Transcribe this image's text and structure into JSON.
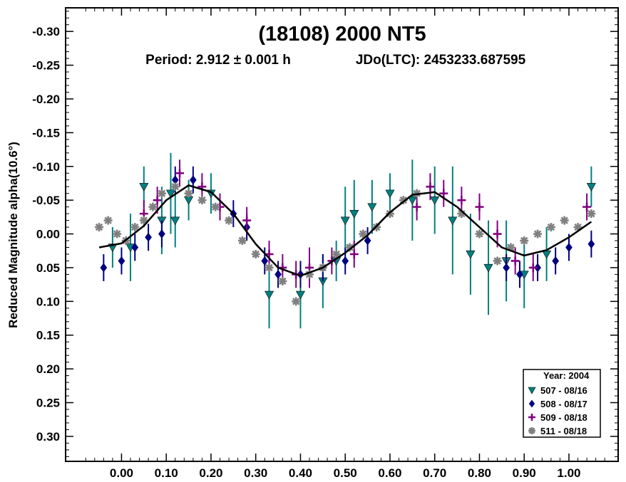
{
  "chart_data": {
    "type": "scatter",
    "title": "(18108) 2000 NT5",
    "subtitle_period": "Period: 2.912 ± 0.001 h",
    "subtitle_jdo": "JDo(LTC): 2453233.687595",
    "xlabel": "",
    "ylabel": "Reduced Magnitude alpha(10.6°)",
    "x_ticks": [
      0.0,
      0.1,
      0.2,
      0.3,
      0.4,
      0.5,
      0.6,
      0.7,
      0.8,
      0.9,
      1.0
    ],
    "x_tick_labels": [
      "0.00",
      "0.10",
      "0.20",
      "0.30",
      "0.40",
      "0.50",
      "0.60",
      "0.70",
      "0.80",
      "0.90",
      "1.00"
    ],
    "xlim": [
      -0.125,
      1.11
    ],
    "y_ticks": [
      -0.3,
      -0.25,
      -0.2,
      -0.15,
      -0.1,
      -0.05,
      0.0,
      0.05,
      0.1,
      0.15,
      0.2,
      0.25,
      0.3
    ],
    "y_tick_labels": [
      "-0.30",
      "-0.25",
      "-0.20",
      "-0.15",
      "-0.10",
      "-0.05",
      "0.00",
      "0.05",
      "0.10",
      "0.15",
      "0.20",
      "0.25",
      "0.30"
    ],
    "ylim": [
      -0.335,
      0.337
    ],
    "y_inverted": true,
    "grid": false,
    "legend_position": "bottom-right",
    "legend_title": "Year: 2004",
    "fit_curve": {
      "color": "#000000",
      "points": [
        [
          -0.05,
          0.02
        ],
        [
          0.0,
          0.014
        ],
        [
          0.05,
          -0.012
        ],
        [
          0.1,
          -0.05
        ],
        [
          0.15,
          -0.072
        ],
        [
          0.2,
          -0.062
        ],
        [
          0.25,
          -0.03
        ],
        [
          0.3,
          0.015
        ],
        [
          0.35,
          0.05
        ],
        [
          0.4,
          0.062
        ],
        [
          0.45,
          0.05
        ],
        [
          0.5,
          0.028
        ],
        [
          0.55,
          0.002
        ],
        [
          0.6,
          -0.032
        ],
        [
          0.65,
          -0.058
        ],
        [
          0.7,
          -0.062
        ],
        [
          0.75,
          -0.04
        ],
        [
          0.8,
          -0.01
        ],
        [
          0.85,
          0.02
        ],
        [
          0.9,
          0.032
        ],
        [
          0.95,
          0.024
        ],
        [
          1.0,
          0.005
        ],
        [
          1.05,
          -0.018
        ]
      ]
    },
    "series": [
      {
        "name": "507 - 08/16",
        "marker": "triangle-down",
        "color": "#008080",
        "points": [
          [
            -0.02,
            0.02,
            0.03
          ],
          [
            0.02,
            0.02,
            0.05
          ],
          [
            0.05,
            -0.07,
            0.03
          ],
          [
            0.09,
            -0.02,
            0.05
          ],
          [
            0.11,
            -0.06,
            0.06
          ],
          [
            0.12,
            -0.02,
            0.04
          ],
          [
            0.15,
            -0.05,
            0.03
          ],
          [
            0.2,
            -0.06,
            0.03
          ],
          [
            0.33,
            0.09,
            0.05
          ],
          [
            0.4,
            0.09,
            0.05
          ],
          [
            0.45,
            0.07,
            0.04
          ],
          [
            0.48,
            0.04,
            0.03
          ],
          [
            0.5,
            -0.02,
            0.05
          ],
          [
            0.52,
            -0.03,
            0.05
          ],
          [
            0.56,
            -0.04,
            0.04
          ],
          [
            0.6,
            -0.06,
            0.03
          ],
          [
            0.65,
            -0.05,
            0.06
          ],
          [
            0.7,
            -0.05,
            0.05
          ],
          [
            0.74,
            -0.02,
            0.08
          ],
          [
            0.78,
            0.03,
            0.06
          ],
          [
            0.82,
            0.05,
            0.07
          ],
          [
            0.86,
            0.04,
            0.06
          ],
          [
            0.9,
            0.06,
            0.05
          ],
          [
            0.95,
            0.03,
            0.04
          ],
          [
            1.05,
            -0.07,
            0.03
          ]
        ]
      },
      {
        "name": "508 - 08/17",
        "marker": "diamond",
        "color": "#000080",
        "points": [
          [
            -0.04,
            0.05,
            0.02
          ],
          [
            0.0,
            0.04,
            0.02
          ],
          [
            0.03,
            0.02,
            0.02
          ],
          [
            0.06,
            0.005,
            0.02
          ],
          [
            0.09,
            0.0,
            0.02
          ],
          [
            0.12,
            -0.08,
            0.02
          ],
          [
            0.16,
            -0.08,
            0.02
          ],
          [
            0.25,
            -0.03,
            0.02
          ],
          [
            0.28,
            -0.01,
            0.02
          ],
          [
            0.32,
            0.04,
            0.02
          ],
          [
            0.35,
            0.06,
            0.02
          ],
          [
            0.4,
            0.06,
            0.02
          ],
          [
            0.45,
            0.05,
            0.02
          ],
          [
            0.5,
            0.04,
            0.02
          ],
          [
            0.55,
            0.01,
            0.02
          ],
          [
            0.86,
            0.05,
            0.02
          ],
          [
            0.89,
            0.06,
            0.02
          ],
          [
            0.93,
            0.05,
            0.02
          ],
          [
            0.97,
            0.04,
            0.02
          ],
          [
            1.0,
            0.02,
            0.02
          ],
          [
            1.05,
            0.015,
            0.02
          ]
        ]
      },
      {
        "name": "509 - 08/18",
        "marker": "plus",
        "color": "#800080",
        "points": [
          [
            0.05,
            -0.03,
            0.02
          ],
          [
            0.08,
            -0.05,
            0.02
          ],
          [
            0.13,
            -0.09,
            0.02
          ],
          [
            0.18,
            -0.07,
            0.02
          ],
          [
            0.22,
            -0.04,
            0.02
          ],
          [
            0.28,
            -0.02,
            0.02
          ],
          [
            0.33,
            0.03,
            0.02
          ],
          [
            0.36,
            0.05,
            0.02
          ],
          [
            0.39,
            0.06,
            0.02
          ],
          [
            0.42,
            0.05,
            0.03
          ],
          [
            0.47,
            0.04,
            0.02
          ],
          [
            0.52,
            0.03,
            0.02
          ],
          [
            0.66,
            -0.04,
            0.02
          ],
          [
            0.69,
            -0.07,
            0.02
          ],
          [
            0.72,
            -0.06,
            0.02
          ],
          [
            0.76,
            -0.05,
            0.02
          ],
          [
            0.8,
            -0.04,
            0.02
          ],
          [
            0.84,
            0.0,
            0.02
          ],
          [
            0.88,
            0.04,
            0.02
          ],
          [
            0.92,
            0.05,
            0.02
          ],
          [
            1.04,
            -0.04,
            0.02
          ]
        ]
      },
      {
        "name": "511 - 08/18",
        "marker": "asterisk",
        "color": "#808080",
        "points": [
          [
            -0.05,
            -0.01
          ],
          [
            -0.03,
            -0.02
          ],
          [
            -0.01,
            0.0
          ],
          [
            0.01,
            0.01
          ],
          [
            0.03,
            -0.01
          ],
          [
            0.05,
            -0.02
          ],
          [
            0.07,
            -0.04
          ],
          [
            0.09,
            -0.06
          ],
          [
            0.12,
            -0.07
          ],
          [
            0.15,
            -0.06
          ],
          [
            0.18,
            -0.05
          ],
          [
            0.21,
            -0.04
          ],
          [
            0.24,
            -0.02
          ],
          [
            0.27,
            0.01
          ],
          [
            0.3,
            0.03
          ],
          [
            0.33,
            0.05
          ],
          [
            0.36,
            0.07
          ],
          [
            0.39,
            0.1
          ],
          [
            0.42,
            0.06
          ],
          [
            0.45,
            0.05
          ],
          [
            0.48,
            0.03
          ],
          [
            0.51,
            0.02
          ],
          [
            0.54,
            0.0
          ],
          [
            0.57,
            -0.01
          ],
          [
            0.6,
            -0.03
          ],
          [
            0.63,
            -0.05
          ],
          [
            0.66,
            -0.06
          ],
          [
            0.76,
            -0.03
          ],
          [
            0.8,
            0.0
          ],
          [
            0.84,
            0.04
          ],
          [
            0.87,
            0.02
          ],
          [
            0.9,
            0.01
          ],
          [
            0.93,
            0.0
          ],
          [
            0.96,
            -0.01
          ],
          [
            0.99,
            -0.02
          ],
          [
            1.02,
            -0.01
          ],
          [
            1.05,
            -0.03
          ]
        ]
      }
    ]
  }
}
